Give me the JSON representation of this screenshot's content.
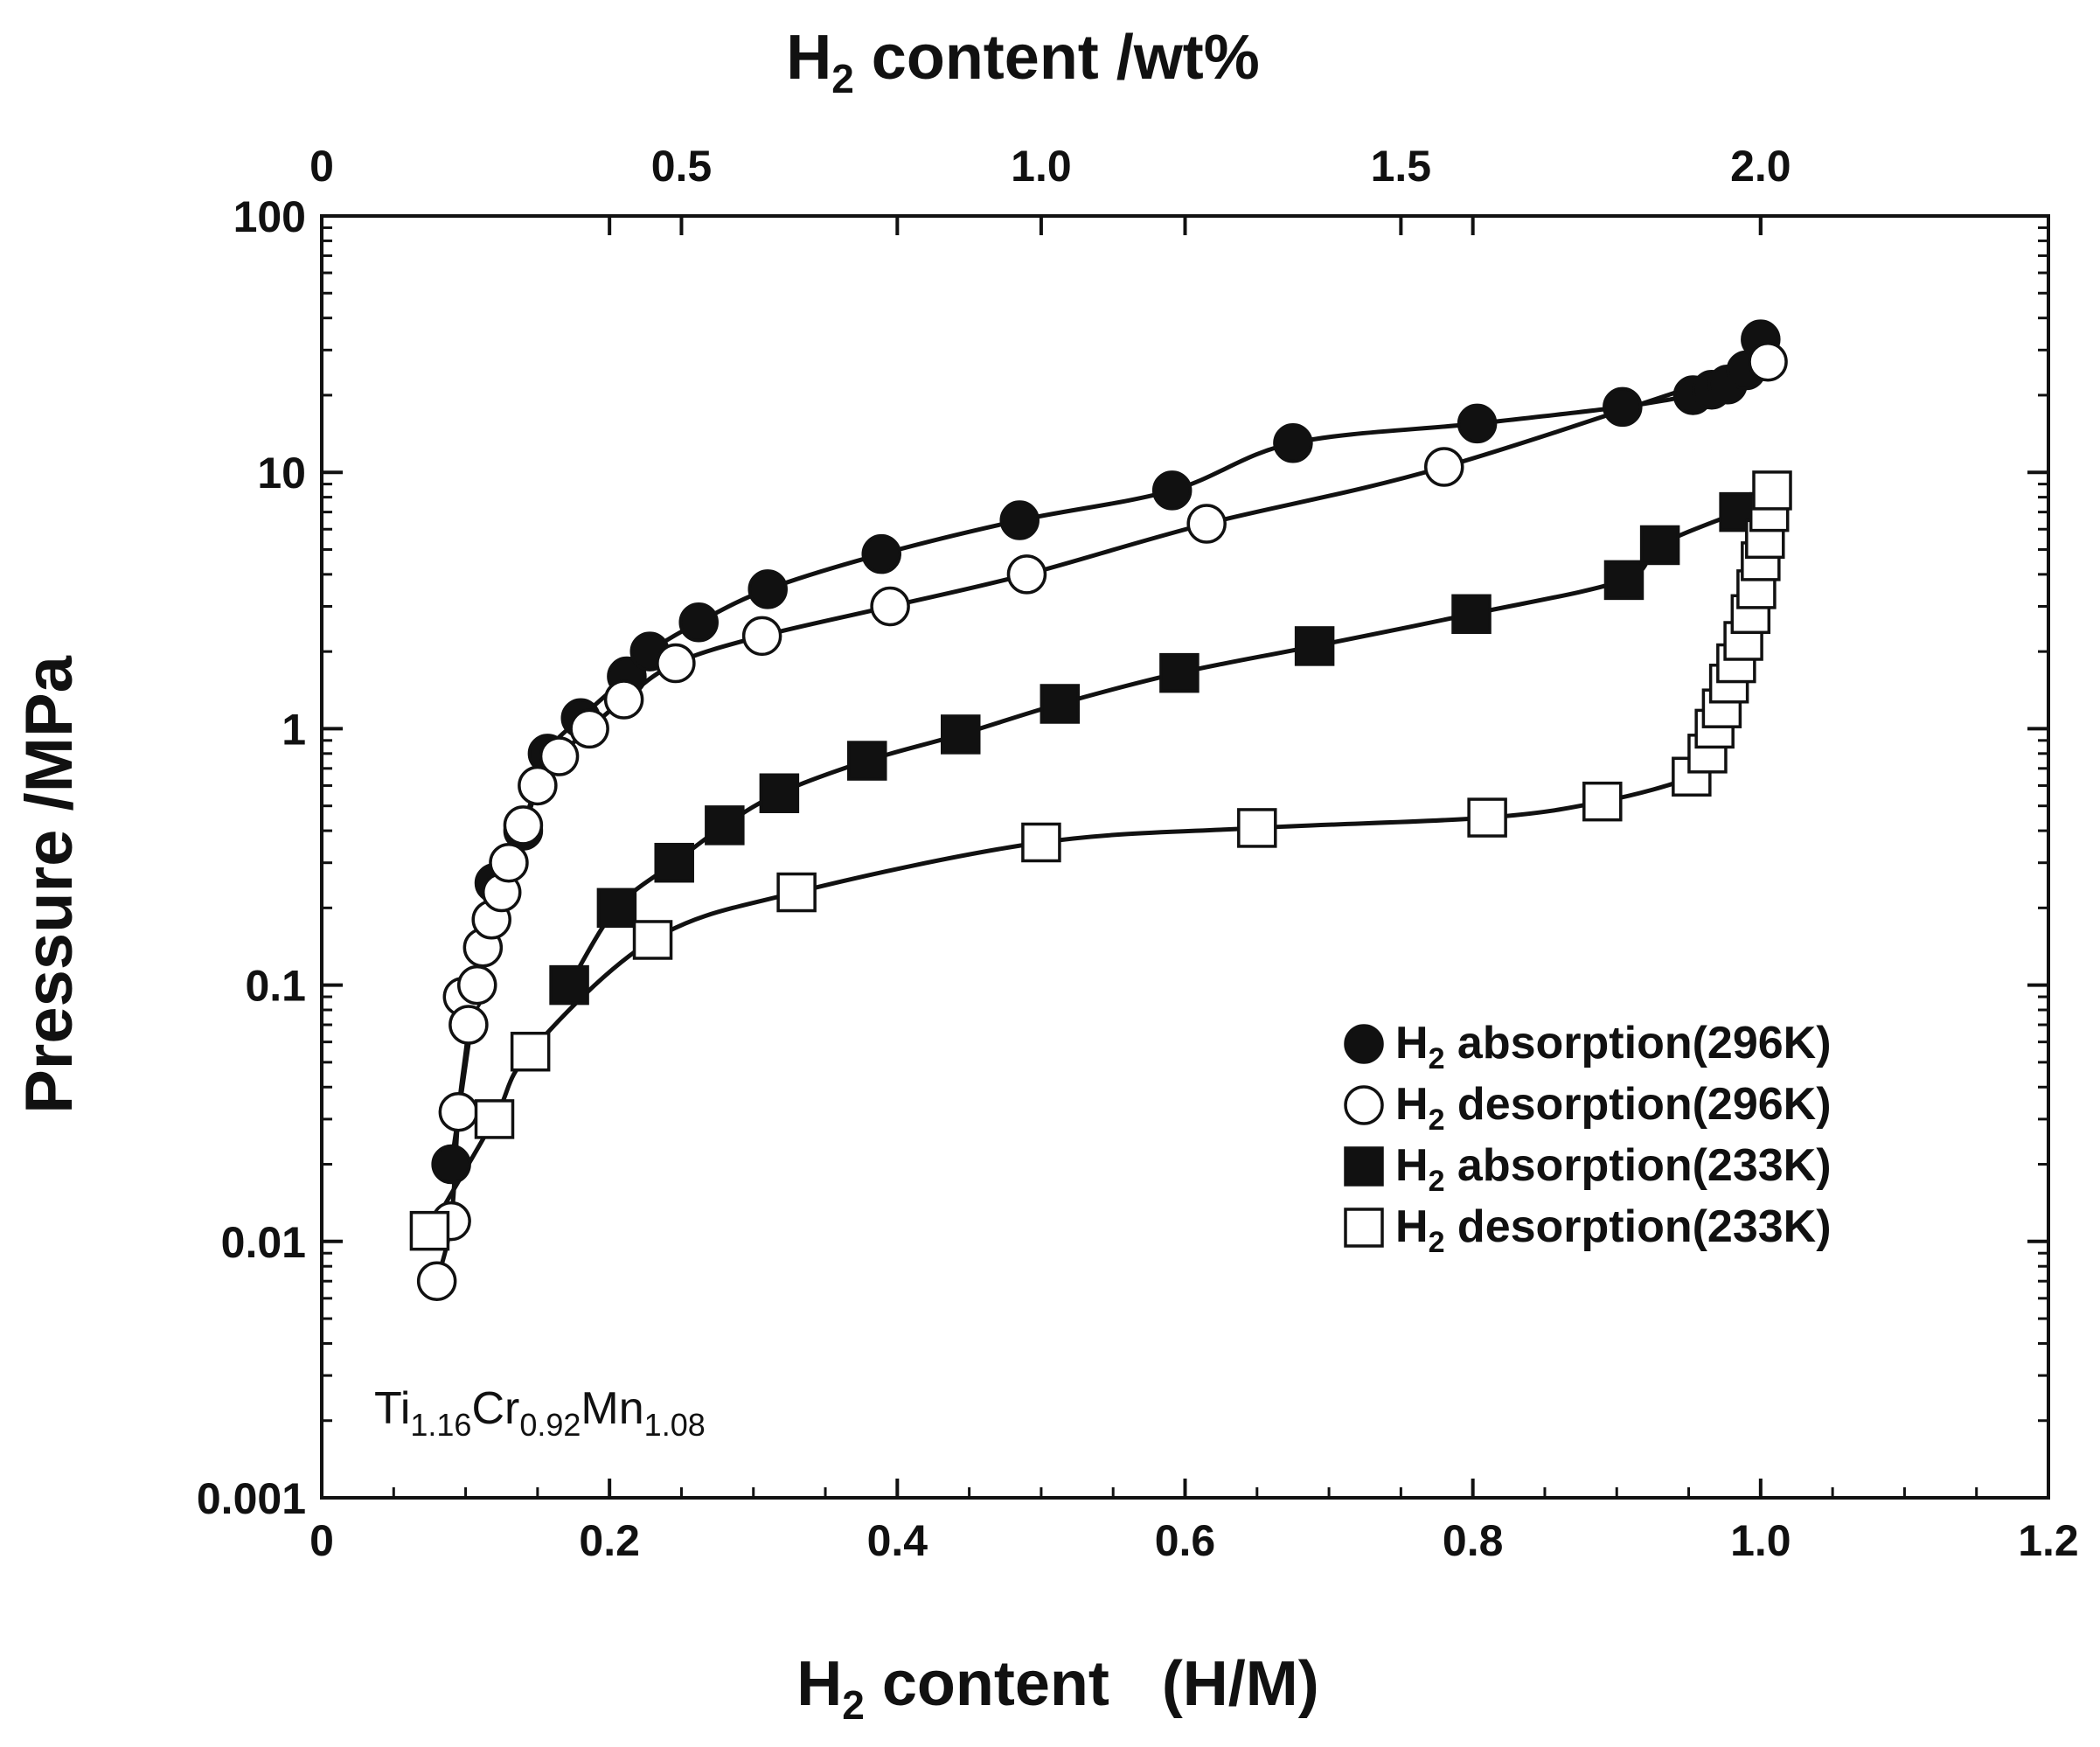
{
  "chart_data": {
    "type": "scatter",
    "title": "",
    "xlabel": {
      "main": "H",
      "sub": "2",
      "rest": " content   (H/M)"
    },
    "x2label": {
      "main": "H",
      "sub": "2",
      "rest": " content /wt%"
    },
    "ylabel": "Pressure /MPa",
    "xlim": [
      0,
      1.2
    ],
    "ylim": [
      0.001,
      100
    ],
    "x2lim": [
      0,
      2.4
    ],
    "yscale": "log",
    "grid": false,
    "legend_position": "lower-right",
    "x_ticks": [
      "0",
      "0.2",
      "0.4",
      "0.6",
      "0.8",
      "1.0",
      "1.2"
    ],
    "x2_ticks": [
      "0",
      "0.5",
      "1.0",
      "1.5",
      "2.0"
    ],
    "y_ticks": [
      "0.001",
      "0.01",
      "0.1",
      "1",
      "10",
      "100"
    ],
    "annotation": {
      "parts": [
        [
          "Ti",
          ""
        ],
        [
          "1.16",
          "sub"
        ],
        [
          "Cr",
          ""
        ],
        [
          "0.92",
          "sub"
        ],
        [
          "Mn",
          ""
        ],
        [
          "1.08",
          "sub"
        ]
      ]
    },
    "series": [
      {
        "name": "H₂ absorption(296K)",
        "legend": {
          "main": "H",
          "sub": "2",
          "rest": " absorption(296K)"
        },
        "marker": "filled-circle",
        "x": [
          0.09,
          0.12,
          0.14,
          0.157,
          0.18,
          0.212,
          0.228,
          0.262,
          0.31,
          0.389,
          0.485,
          0.591,
          0.675,
          0.803,
          0.904,
          0.953,
          0.966,
          0.977,
          0.99,
          1.0
        ],
        "y": [
          0.02,
          0.25,
          0.4,
          0.8,
          1.1,
          1.6,
          2.0,
          2.6,
          3.5,
          4.8,
          6.5,
          8.5,
          13.0,
          15.5,
          18.0,
          20.0,
          21.0,
          22.0,
          25.0,
          33.0
        ]
      },
      {
        "name": "H₂ desorption(296K)",
        "legend": {
          "main": "H",
          "sub": "2",
          "rest": " desorption(296K)"
        },
        "marker": "open-circle",
        "x": [
          0.08,
          0.09,
          0.095,
          0.098,
          0.102,
          0.108,
          0.112,
          0.118,
          0.125,
          0.13,
          0.14,
          0.15,
          0.165,
          0.186,
          0.21,
          0.246,
          0.306,
          0.395,
          0.49,
          0.615,
          0.78,
          1.005
        ],
        "y": [
          0.007,
          0.012,
          0.032,
          0.09,
          0.07,
          0.1,
          0.14,
          0.18,
          0.23,
          0.3,
          0.42,
          0.6,
          0.78,
          1.0,
          1.3,
          1.8,
          2.3,
          3.0,
          4.0,
          6.3,
          10.5,
          27.0
        ]
      },
      {
        "name": "H₂ absorption(233K)",
        "legend": {
          "main": "H",
          "sub": "2",
          "rest": " absorption(233K)"
        },
        "marker": "filled-square",
        "x": [
          0.172,
          0.205,
          0.245,
          0.28,
          0.318,
          0.379,
          0.444,
          0.513,
          0.596,
          0.69,
          0.799,
          0.905,
          0.93,
          0.985
        ],
        "y": [
          0.1,
          0.2,
          0.3,
          0.42,
          0.56,
          0.75,
          0.95,
          1.25,
          1.65,
          2.1,
          2.8,
          3.8,
          5.2,
          7.0
        ]
      },
      {
        "name": "H₂ desorption(233K)",
        "legend": {
          "main": "H",
          "sub": "2",
          "rest": " desorption(233K)"
        },
        "marker": "open-square",
        "x": [
          0.075,
          0.12,
          0.145,
          0.23,
          0.33,
          0.5,
          0.65,
          0.81,
          0.89,
          0.952,
          0.963,
          0.968,
          0.973,
          0.978,
          0.983,
          0.988,
          0.993,
          0.997,
          1.0,
          1.003,
          1.006,
          1.008
        ],
        "y": [
          0.011,
          0.03,
          0.055,
          0.15,
          0.23,
          0.36,
          0.41,
          0.45,
          0.52,
          0.65,
          0.8,
          1.0,
          1.2,
          1.5,
          1.8,
          2.2,
          2.8,
          3.5,
          4.5,
          5.5,
          7.0,
          8.5
        ]
      }
    ]
  }
}
